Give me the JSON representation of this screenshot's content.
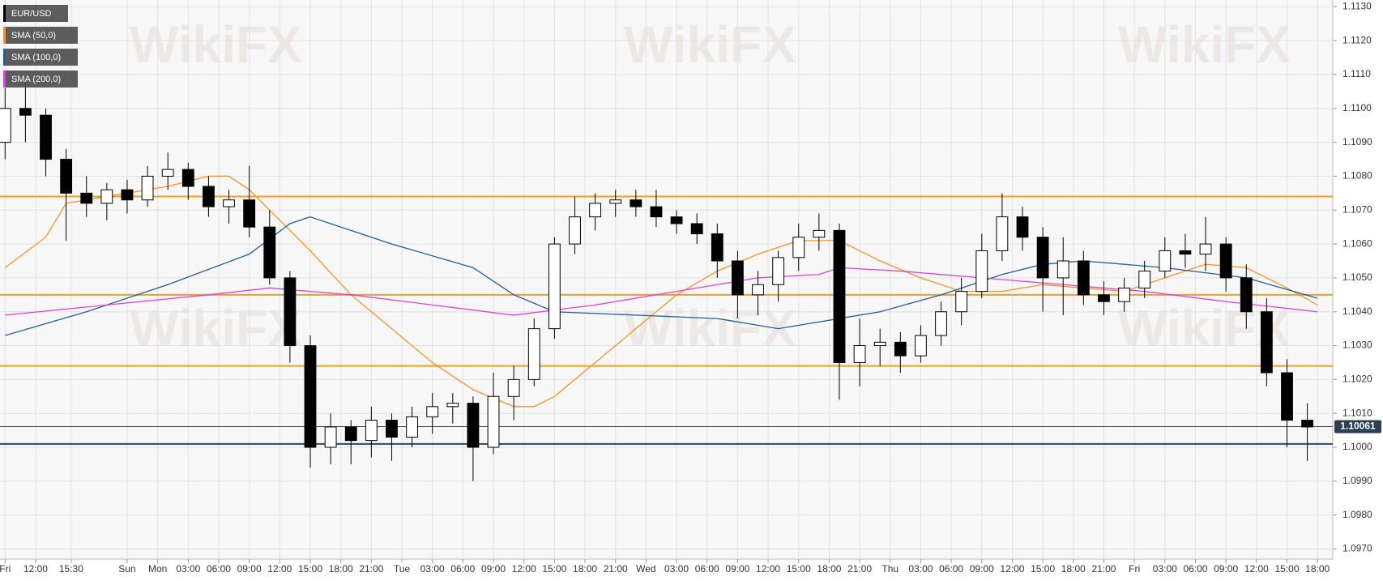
{
  "chart_data": {
    "type": "candlestick",
    "watermark": "WikiFX",
    "symbol": "EUR/USD",
    "up_color": "#ffffff",
    "down_color": "#000000",
    "grid": true,
    "xlim": [
      -15.5,
      115.5
    ],
    "ylim": [
      1.0967,
      1.1132
    ],
    "yticks": [
      {
        "value": 1.097,
        "label": "1.0970"
      },
      {
        "value": 1.098,
        "label": "1.0980"
      },
      {
        "value": 1.099,
        "label": "1.0990"
      },
      {
        "value": 1.1,
        "label": "1.1000"
      },
      {
        "value": 1.101,
        "label": "1.1010"
      },
      {
        "value": 1.102,
        "label": "1.1020"
      },
      {
        "value": 1.103,
        "label": "1.1030"
      },
      {
        "value": 1.104,
        "label": "1.1040"
      },
      {
        "value": 1.105,
        "label": "1.1050"
      },
      {
        "value": 1.106,
        "label": "1.1060"
      },
      {
        "value": 1.107,
        "label": "1.1070"
      },
      {
        "value": 1.108,
        "label": "1.1080"
      },
      {
        "value": 1.109,
        "label": "1.1090"
      },
      {
        "value": 1.11,
        "label": "1.1100"
      },
      {
        "value": 1.111,
        "label": "1.1110"
      },
      {
        "value": 1.112,
        "label": "1.1120"
      },
      {
        "value": 1.113,
        "label": "1.1130"
      }
    ],
    "xticks": [
      {
        "value": -15,
        "label": "Fri"
      },
      {
        "value": -12,
        "label": "12:00"
      },
      {
        "value": -8.5,
        "label": "15:30"
      },
      {
        "value": -3,
        "label": "Sun"
      },
      {
        "value": 0,
        "label": "Mon"
      },
      {
        "value": 3,
        "label": "03:00"
      },
      {
        "value": 6,
        "label": "06:00"
      },
      {
        "value": 9,
        "label": "09:00"
      },
      {
        "value": 12,
        "label": "12:00"
      },
      {
        "value": 15,
        "label": "15:00"
      },
      {
        "value": 18,
        "label": "18:00"
      },
      {
        "value": 21,
        "label": "21:00"
      },
      {
        "value": 24,
        "label": "Tue"
      },
      {
        "value": 27,
        "label": "03:00"
      },
      {
        "value": 30,
        "label": "06:00"
      },
      {
        "value": 33,
        "label": "09:00"
      },
      {
        "value": 36,
        "label": "12:00"
      },
      {
        "value": 39,
        "label": "15:00"
      },
      {
        "value": 42,
        "label": "18:00"
      },
      {
        "value": 45,
        "label": "21:00"
      },
      {
        "value": 48,
        "label": "Wed"
      },
      {
        "value": 51,
        "label": "03:00"
      },
      {
        "value": 54,
        "label": "06:00"
      },
      {
        "value": 57,
        "label": "09:00"
      },
      {
        "value": 60,
        "label": "12:00"
      },
      {
        "value": 63,
        "label": "15:00"
      },
      {
        "value": 66,
        "label": "18:00"
      },
      {
        "value": 69,
        "label": "21:00"
      },
      {
        "value": 72,
        "label": "Thu"
      },
      {
        "value": 75,
        "label": "03:00"
      },
      {
        "value": 78,
        "label": "06:00"
      },
      {
        "value": 81,
        "label": "09:00"
      },
      {
        "value": 84,
        "label": "12:00"
      },
      {
        "value": 87,
        "label": "15:00"
      },
      {
        "value": 90,
        "label": "18:00"
      },
      {
        "value": 93,
        "label": "21:00"
      },
      {
        "value": 96,
        "label": "Fri"
      },
      {
        "value": 99,
        "label": "03:00"
      },
      {
        "value": 102,
        "label": "06:00"
      },
      {
        "value": 105,
        "label": "09:00"
      },
      {
        "value": 108,
        "label": "12:00"
      },
      {
        "value": 111,
        "label": "15:00"
      },
      {
        "value": 114,
        "label": "18:00"
      }
    ],
    "x": [
      -15,
      -13,
      -11,
      -9,
      -7,
      -5,
      -3,
      -1,
      1,
      3,
      5,
      7,
      9,
      11,
      13,
      15,
      17,
      19,
      21,
      23,
      25,
      27,
      29,
      31,
      33,
      35,
      37,
      39,
      41,
      43,
      45,
      47,
      49,
      51,
      53,
      55,
      57,
      59,
      61,
      63,
      65,
      67,
      69,
      71,
      73,
      75,
      77,
      79,
      81,
      83,
      85,
      87,
      89,
      91,
      93,
      95,
      97,
      99,
      101,
      103,
      105,
      107,
      109,
      111,
      113
    ],
    "open": [
      1.109,
      1.11,
      1.1098,
      1.1085,
      1.1075,
      1.1072,
      1.1076,
      1.1073,
      1.108,
      1.1082,
      1.1077,
      1.1071,
      1.1073,
      1.1065,
      1.105,
      1.103,
      1.1,
      1.1006,
      1.1002,
      1.1008,
      1.1003,
      1.1009,
      1.1012,
      1.1013,
      1.1,
      1.1015,
      1.102,
      1.1035,
      1.106,
      1.1068,
      1.1072,
      1.1073,
      1.1071,
      1.1068,
      1.1066,
      1.1063,
      1.1055,
      1.1045,
      1.1048,
      1.1056,
      1.1062,
      1.1064,
      1.1025,
      1.103,
      1.1031,
      1.1027,
      1.1033,
      1.104,
      1.1046,
      1.1058,
      1.1068,
      1.1062,
      1.105,
      1.1055,
      1.1045,
      1.1043,
      1.1047,
      1.1052,
      1.1058,
      1.1057,
      1.106,
      1.105,
      1.104,
      1.1022,
      1.1008
    ],
    "high": [
      1.1106,
      1.1108,
      1.11,
      1.1088,
      1.108,
      1.1078,
      1.1079,
      1.1083,
      1.1087,
      1.1084,
      1.108,
      1.1076,
      1.1083,
      1.107,
      1.1052,
      1.1033,
      1.101,
      1.1008,
      1.1012,
      1.101,
      1.1012,
      1.1016,
      1.1016,
      1.1015,
      1.1022,
      1.1024,
      1.1038,
      1.1062,
      1.1074,
      1.1075,
      1.1076,
      1.1076,
      1.1076,
      1.107,
      1.1069,
      1.1066,
      1.1058,
      1.1052,
      1.1058,
      1.1066,
      1.1069,
      1.1066,
      1.1038,
      1.1035,
      1.1034,
      1.1036,
      1.1043,
      1.105,
      1.1063,
      1.1075,
      1.1071,
      1.1065,
      1.1062,
      1.1058,
      1.1049,
      1.105,
      1.1055,
      1.1062,
      1.1063,
      1.1068,
      1.1062,
      1.1054,
      1.1044,
      1.1026,
      1.1013
    ],
    "low": [
      1.1085,
      1.109,
      1.108,
      1.1061,
      1.1068,
      1.1067,
      1.1069,
      1.1071,
      1.1076,
      1.1073,
      1.1068,
      1.1066,
      1.1062,
      1.1048,
      1.1025,
      1.0994,
      1.0995,
      1.0995,
      1.0997,
      1.0996,
      1.1,
      1.1004,
      1.1007,
      1.099,
      1.0998,
      1.1008,
      1.1018,
      1.1032,
      1.1057,
      1.1064,
      1.1068,
      1.1068,
      1.1065,
      1.1063,
      1.106,
      1.105,
      1.1038,
      1.1039,
      1.1043,
      1.1052,
      1.1058,
      1.1014,
      1.1018,
      1.1024,
      1.1022,
      1.1025,
      1.103,
      1.1036,
      1.1044,
      1.1055,
      1.1058,
      1.104,
      1.1039,
      1.1042,
      1.1039,
      1.104,
      1.1044,
      1.105,
      1.1053,
      1.1052,
      1.1046,
      1.1035,
      1.1018,
      1.1,
      1.0996
    ],
    "close": [
      1.11,
      1.1098,
      1.1085,
      1.1075,
      1.1072,
      1.1076,
      1.1073,
      1.108,
      1.1082,
      1.1077,
      1.1071,
      1.1073,
      1.1065,
      1.105,
      1.103,
      1.1,
      1.1006,
      1.1002,
      1.1008,
      1.1003,
      1.1009,
      1.1012,
      1.1013,
      1.1,
      1.1015,
      1.102,
      1.1035,
      1.106,
      1.1068,
      1.1072,
      1.1073,
      1.1071,
      1.1068,
      1.1066,
      1.1063,
      1.1055,
      1.1045,
      1.1048,
      1.1056,
      1.1062,
      1.1064,
      1.1025,
      1.103,
      1.1031,
      1.1027,
      1.1033,
      1.104,
      1.1046,
      1.1058,
      1.1068,
      1.1062,
      1.105,
      1.1055,
      1.1045,
      1.1043,
      1.1047,
      1.1052,
      1.1058,
      1.1057,
      1.106,
      1.105,
      1.104,
      1.1022,
      1.1008,
      1.1006
    ],
    "lines": [
      {
        "name": "SMA (50,0)",
        "color": "#f7941d",
        "x": [
          -15,
          -11,
          -9,
          -5,
          1,
          5,
          7,
          9,
          11,
          15,
          19,
          23,
          27,
          31,
          35,
          37,
          39,
          43,
          47,
          51,
          55,
          59,
          63,
          67,
          71,
          75,
          79,
          83,
          87,
          91,
          95,
          99,
          103,
          107,
          111,
          114
        ],
        "values": [
          1.1053,
          1.1062,
          1.1072,
          1.1074,
          1.1077,
          1.108,
          1.108,
          1.1076,
          1.107,
          1.1058,
          1.1045,
          1.1035,
          1.1025,
          1.1017,
          1.1012,
          1.1012,
          1.1015,
          1.1025,
          1.1035,
          1.1045,
          1.1052,
          1.1057,
          1.1061,
          1.1061,
          1.1055,
          1.105,
          1.1046,
          1.1046,
          1.1048,
          1.1047,
          1.1046,
          1.105,
          1.1054,
          1.1053,
          1.1047,
          1.1042
        ]
      },
      {
        "name": "SMA (100,0)",
        "color": "#1f5fa0",
        "x": [
          -15,
          -7,
          1,
          9,
          13,
          15,
          17,
          23,
          31,
          35,
          39,
          47,
          55,
          61,
          65,
          71,
          77,
          83,
          87,
          91,
          99,
          107,
          114
        ],
        "values": [
          1.1033,
          1.104,
          1.1048,
          1.1057,
          1.1066,
          1.1068,
          1.1066,
          1.106,
          1.1053,
          1.1045,
          1.104,
          1.1039,
          1.1038,
          1.1035,
          1.1037,
          1.104,
          1.1045,
          1.1051,
          1.1054,
          1.1055,
          1.1053,
          1.105,
          1.1044
        ]
      },
      {
        "name": "SMA (200,0)",
        "color": "#e040e0",
        "x": [
          -15,
          -5,
          5,
          11,
          19,
          27,
          35,
          43,
          51,
          59,
          65,
          67,
          73,
          81,
          89,
          97,
          105,
          114
        ],
        "values": [
          1.1039,
          1.1042,
          1.1045,
          1.1047,
          1.1045,
          1.1042,
          1.1039,
          1.1042,
          1.1046,
          1.105,
          1.1051,
          1.1053,
          1.1052,
          1.105,
          1.1048,
          1.1046,
          1.1043,
          1.104
        ]
      }
    ],
    "levels": [
      {
        "value": 1.1074,
        "color": "#f0a020"
      },
      {
        "value": 1.1045,
        "color": "#f0a020"
      },
      {
        "value": 1.1024,
        "color": "#f0a020"
      },
      {
        "value": 1.1001,
        "color": "#1f4e79"
      }
    ],
    "last_price": 1.10061,
    "last_price_color": "#2b3f55"
  }
}
